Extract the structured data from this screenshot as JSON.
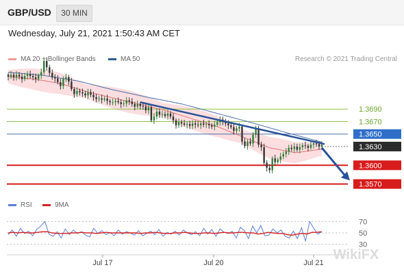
{
  "header": {
    "symbol": "GBP/USD",
    "timeframe": "30 MIN"
  },
  "timestamp": "Wednesday, July 21, 2021 1:50:43 AM CET",
  "legend_top": [
    {
      "label": "MA 20 + Bollinger Bands",
      "color": "#f29b9b"
    },
    {
      "label": "MA 50",
      "color": "#2e5d8a"
    }
  ],
  "legend_bottom": [
    {
      "label": "RSI",
      "color": "#5b7fd6"
    },
    {
      "label": "9MA",
      "color": "#d62020"
    }
  ],
  "credit": "Research © 2021 Trading Central",
  "watermark": "WikiFX",
  "colors": {
    "bull": "#2e7d32",
    "bear": "#333333",
    "band": "#fbd3d6",
    "ma20": "#e57373",
    "ma50": "#4a6ea9",
    "support": "#d81b1b",
    "resistance": "#8bc34a",
    "arrow": "#2a5298"
  },
  "chart_data": [
    {
      "type": "candlestick",
      "title": "GBP/USD 30 MIN",
      "x_ticks": [
        "Jul 17",
        "Jul 20",
        "Jul 21"
      ],
      "ylim": [
        1.3563,
        1.3755
      ],
      "levels": [
        {
          "value": 1.369,
          "label": "1.3690",
          "kind": "resistance"
        },
        {
          "value": 1.367,
          "label": "1.3670",
          "kind": "resistance"
        },
        {
          "value": 1.365,
          "label": "1.3650",
          "kind": "pivot"
        },
        {
          "value": 1.363,
          "label": "1.3630",
          "kind": "last"
        },
        {
          "value": 1.36,
          "label": "1.3600",
          "kind": "support"
        },
        {
          "value": 1.357,
          "label": "1.3570",
          "kind": "support"
        }
      ],
      "close_path": [
        1.3742,
        1.3745,
        1.3741,
        1.3745,
        1.3742,
        1.3738,
        1.3743,
        1.3746,
        1.3743,
        1.3741,
        1.3738,
        1.3744,
        1.3749,
        1.3767,
        1.3757,
        1.3748,
        1.3741,
        1.3739,
        1.3733,
        1.3727,
        1.3738,
        1.3741,
        1.3734,
        1.3722,
        1.3714,
        1.3719,
        1.3717,
        1.3715,
        1.3712,
        1.3717,
        1.3713,
        1.3709,
        1.3706,
        1.3707,
        1.3705,
        1.3707,
        1.3703,
        1.3701,
        1.3701,
        1.3703,
        1.3701,
        1.3698,
        1.3699,
        1.3704,
        1.3702,
        1.3698,
        1.3694,
        1.3698,
        1.3695,
        1.3694,
        1.3688,
        1.3693,
        1.3672,
        1.3678,
        1.3686,
        1.3681,
        1.3682,
        1.3679,
        1.3683,
        1.3678,
        1.3672,
        1.3664,
        1.3669,
        1.3667,
        1.3665,
        1.3666,
        1.3663,
        1.3667,
        1.3665,
        1.3664,
        1.3667,
        1.3665,
        1.3666,
        1.3664,
        1.3662,
        1.3665,
        1.3669,
        1.3673,
        1.3669,
        1.3667,
        1.3664,
        1.3661,
        1.3655,
        1.3659,
        1.3662,
        1.3638,
        1.3631,
        1.3638,
        1.3635,
        1.3649,
        1.3658,
        1.3633,
        1.3629,
        1.3604,
        1.3596,
        1.3592,
        1.3611,
        1.3605,
        1.3609,
        1.3614,
        1.3618,
        1.3622,
        1.3628,
        1.3626,
        1.363,
        1.3625,
        1.3629,
        1.3632,
        1.3631,
        1.3628,
        1.3633,
        1.3635,
        1.3634,
        1.363,
        1.3633
      ],
      "ma50": [
        1.3749,
        1.3744,
        1.3735,
        1.3721,
        1.3709,
        1.3698,
        1.3683,
        1.3668,
        1.3652,
        1.3637
      ],
      "ma20": [
        1.3742,
        1.3738,
        1.3731,
        1.3718,
        1.3708,
        1.3698,
        1.3688,
        1.3675,
        1.3662,
        1.3645,
        1.3628,
        1.362,
        1.3626
      ],
      "trendline": {
        "from": {
          "index": 48,
          "value": 1.3701
        },
        "to": {
          "index": 115,
          "value": 1.3634
        }
      },
      "forecast_arrow": {
        "from": 1.3628,
        "to": 1.3579
      }
    },
    {
      "type": "line",
      "title": "RSI",
      "yticks": [
        70,
        50,
        30
      ],
      "ylim": [
        20,
        80
      ],
      "series": [
        {
          "name": "RSI",
          "values": [
            47,
            55,
            44,
            58,
            49,
            53,
            45,
            56,
            62,
            70,
            48,
            44,
            52,
            41,
            57,
            47,
            55,
            49,
            52,
            46,
            43,
            58,
            49,
            54,
            47,
            51,
            45,
            55,
            48,
            52,
            50,
            46,
            54,
            45,
            49,
            53,
            47,
            56,
            44,
            51,
            48,
            53,
            46,
            55,
            50,
            47,
            52,
            45,
            58,
            48,
            56,
            44,
            57,
            51,
            49,
            53,
            41,
            60,
            54,
            40,
            62,
            50,
            63,
            45,
            46,
            57,
            50,
            55,
            44,
            41,
            53,
            40,
            59,
            36,
            70,
            58,
            48,
            52
          ]
        },
        {
          "name": "9MA",
          "values": [
            50,
            51,
            50,
            51,
            50,
            50,
            51,
            52,
            52,
            50,
            49,
            49,
            49,
            50,
            50,
            51,
            50,
            50,
            49,
            50,
            51,
            50,
            50,
            50,
            50,
            50,
            50,
            49,
            50,
            50,
            51,
            50,
            49,
            49,
            50,
            50,
            51,
            50,
            49,
            49,
            50,
            50,
            49,
            50,
            51,
            50,
            50,
            51,
            51,
            50,
            50,
            48,
            49,
            51,
            50,
            49,
            49,
            47,
            46,
            48,
            49,
            48,
            51,
            51,
            52
          ]
        }
      ]
    }
  ]
}
